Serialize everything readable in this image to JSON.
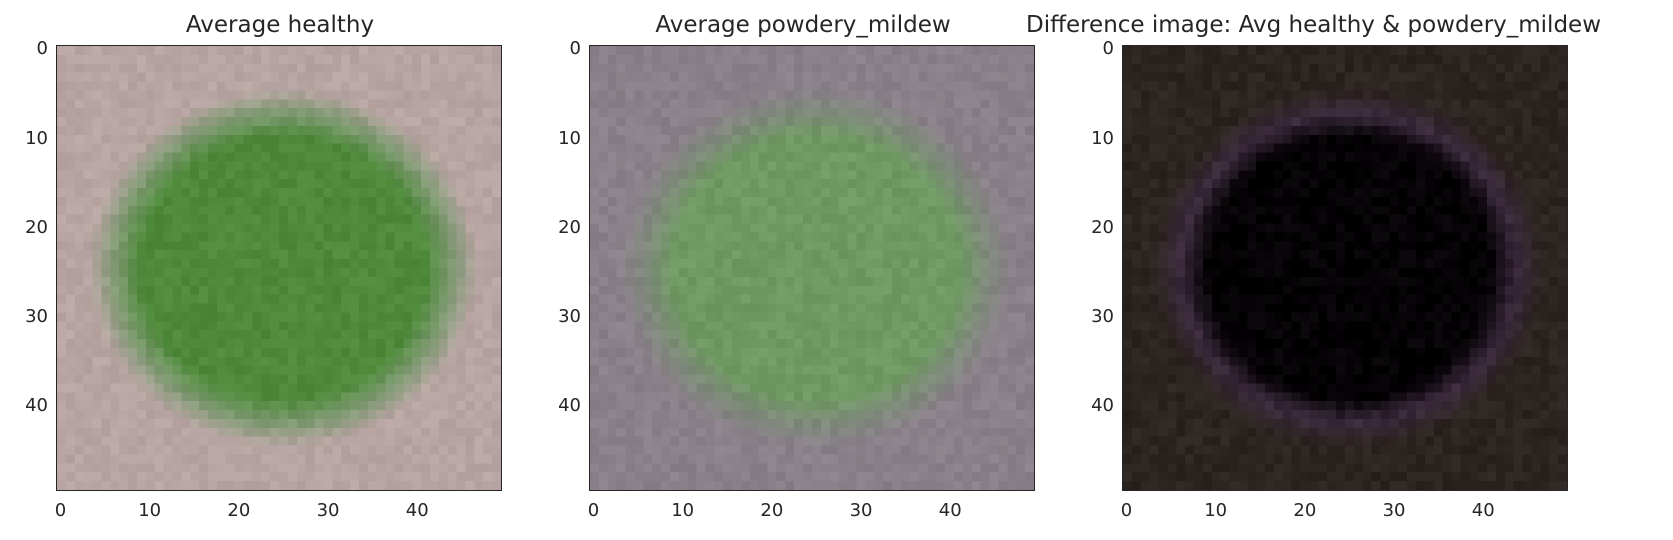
{
  "chart_data": [
    {
      "type": "heatmap",
      "title": "Average healthy",
      "image_size": 50,
      "xticks": [
        0,
        10,
        20,
        30,
        40
      ],
      "yticks": [
        0,
        10,
        20,
        30,
        40
      ],
      "colors": {
        "background": "#b8a5a3",
        "leaf": "#4e8a3a",
        "leaf_edge": "#7f9a72"
      }
    },
    {
      "type": "heatmap",
      "title": "Average powdery_mildew",
      "image_size": 50,
      "xticks": [
        0,
        10,
        20,
        30,
        40
      ],
      "yticks": [
        0,
        10,
        20,
        30,
        40
      ],
      "colors": {
        "background": "#8a8089",
        "leaf": "#6f9a62",
        "leaf_edge": "#7e8b7a"
      }
    },
    {
      "type": "heatmap",
      "title": "Difference image: Avg healthy & powdery_mildew",
      "image_size": 50,
      "xticks": [
        0,
        10,
        20,
        30,
        40
      ],
      "yticks": [
        0,
        10,
        20,
        30,
        40
      ],
      "colors": {
        "background": "#2c2420",
        "leaf": "#050205",
        "leaf_edge": "#3a2a3c"
      }
    }
  ]
}
